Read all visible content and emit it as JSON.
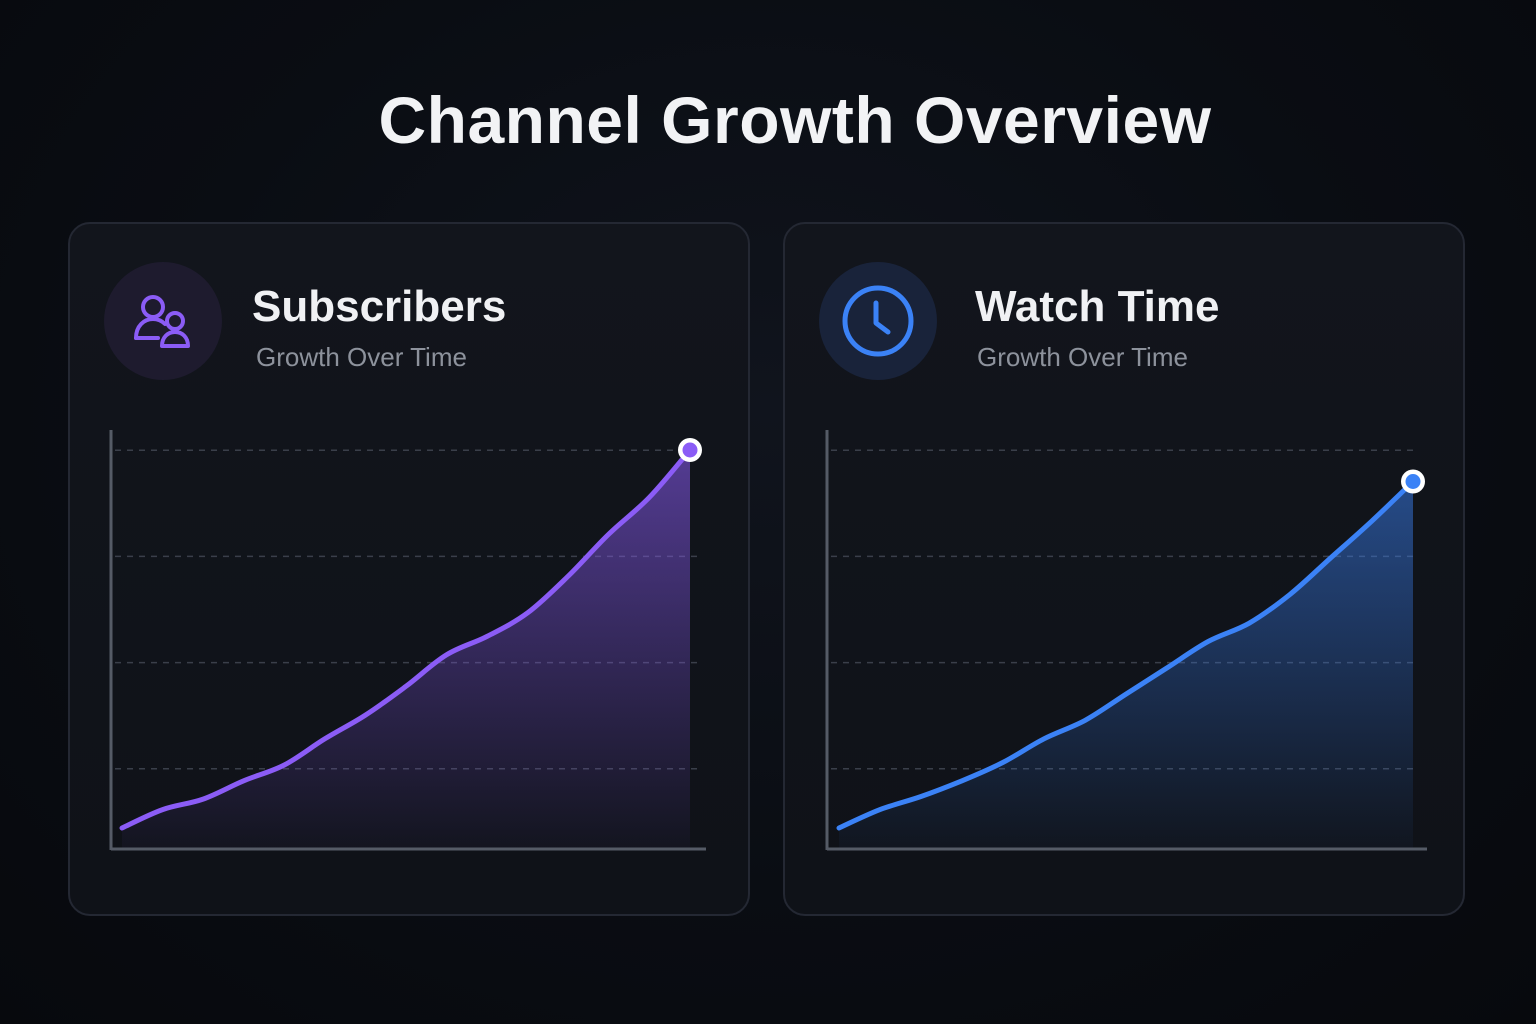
{
  "page": {
    "title": "Channel Growth Overview"
  },
  "cards": [
    {
      "title": "Subscribers",
      "subtitle": "Growth Over Time",
      "icon": "users-icon",
      "accent": "#8b5cf6"
    },
    {
      "title": "Watch Time",
      "subtitle": "Growth Over Time",
      "icon": "clock-icon",
      "accent": "#3b82f6"
    }
  ],
  "chart_data": [
    {
      "type": "area",
      "x": [
        0,
        1,
        2,
        3,
        4,
        5,
        6,
        7,
        8,
        9,
        10,
        11,
        12,
        13,
        14
      ],
      "series": [
        {
          "values": [
            0.4,
            0.75,
            0.95,
            1.3,
            1.6,
            2.1,
            2.55,
            3.1,
            3.7,
            4.05,
            4.5,
            5.2,
            6.0,
            6.7,
            7.6
          ]
        }
      ],
      "ylim": [
        0,
        8
      ],
      "grid": true,
      "end_marker": true,
      "color": "#8b5cf6"
    },
    {
      "type": "area",
      "x": [
        0,
        1,
        2,
        3,
        4,
        5,
        6,
        7,
        8,
        9,
        10,
        11,
        12,
        13,
        14
      ],
      "series": [
        {
          "values": [
            0.4,
            0.75,
            1.0,
            1.3,
            1.65,
            2.1,
            2.45,
            2.95,
            3.45,
            3.95,
            4.3,
            4.85,
            5.55,
            6.25,
            7.0
          ]
        }
      ],
      "ylim": [
        0,
        8
      ],
      "grid": true,
      "end_marker": true,
      "color": "#3b82f6"
    }
  ]
}
